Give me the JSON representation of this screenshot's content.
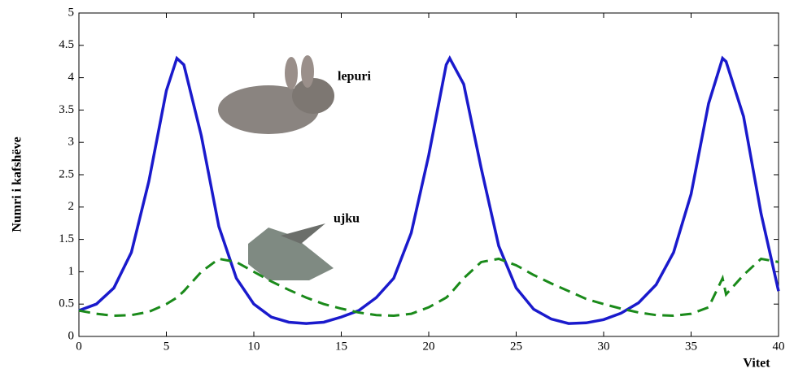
{
  "chart_data": {
    "type": "line",
    "y_label": "Numri i kafshëve",
    "x_label": "Vitet",
    "x": [
      0,
      1,
      2,
      3,
      4,
      5,
      5.6,
      6,
      7,
      8,
      9,
      10,
      11,
      12,
      13,
      14,
      15,
      16,
      17,
      18,
      19,
      20,
      21,
      21.2,
      22,
      23,
      24,
      25,
      26,
      27,
      28,
      29,
      30,
      31,
      32,
      33,
      34,
      35,
      36,
      36.8,
      37,
      38,
      39,
      40
    ],
    "series": [
      {
        "name": "lepuri",
        "color": "#1a1acc",
        "dash": false,
        "values": [
          0.4,
          0.5,
          0.75,
          1.3,
          2.4,
          3.8,
          4.3,
          4.2,
          3.1,
          1.7,
          0.9,
          0.5,
          0.3,
          0.22,
          0.2,
          0.22,
          0.3,
          0.4,
          0.6,
          0.9,
          1.6,
          2.8,
          4.2,
          4.3,
          3.9,
          2.6,
          1.4,
          0.75,
          0.42,
          0.27,
          0.2,
          0.21,
          0.26,
          0.36,
          0.52,
          0.8,
          1.3,
          2.2,
          3.6,
          4.3,
          4.25,
          3.4,
          1.9,
          0.7
        ]
      },
      {
        "name": "ujku",
        "color": "#1a8a1a",
        "dash": true,
        "values": [
          0.4,
          0.35,
          0.32,
          0.33,
          0.38,
          0.5,
          0.6,
          0.7,
          1.0,
          1.2,
          1.15,
          1.0,
          0.85,
          0.72,
          0.6,
          0.5,
          0.43,
          0.37,
          0.33,
          0.32,
          0.35,
          0.45,
          0.6,
          0.65,
          0.9,
          1.15,
          1.2,
          1.1,
          0.95,
          0.82,
          0.7,
          0.58,
          0.5,
          0.43,
          0.37,
          0.33,
          0.32,
          0.35,
          0.45,
          0.9,
          0.65,
          0.95,
          1.2,
          1.15
        ]
      }
    ],
    "xlim": [
      0,
      40
    ],
    "xticks": [
      0,
      5,
      10,
      15,
      20,
      25,
      30,
      35,
      40
    ],
    "ylim": [
      0,
      5
    ],
    "yticks": [
      0,
      0.5,
      1,
      1.5,
      2,
      2.5,
      3,
      3.5,
      4,
      4.5,
      5
    ],
    "grid": false
  }
}
